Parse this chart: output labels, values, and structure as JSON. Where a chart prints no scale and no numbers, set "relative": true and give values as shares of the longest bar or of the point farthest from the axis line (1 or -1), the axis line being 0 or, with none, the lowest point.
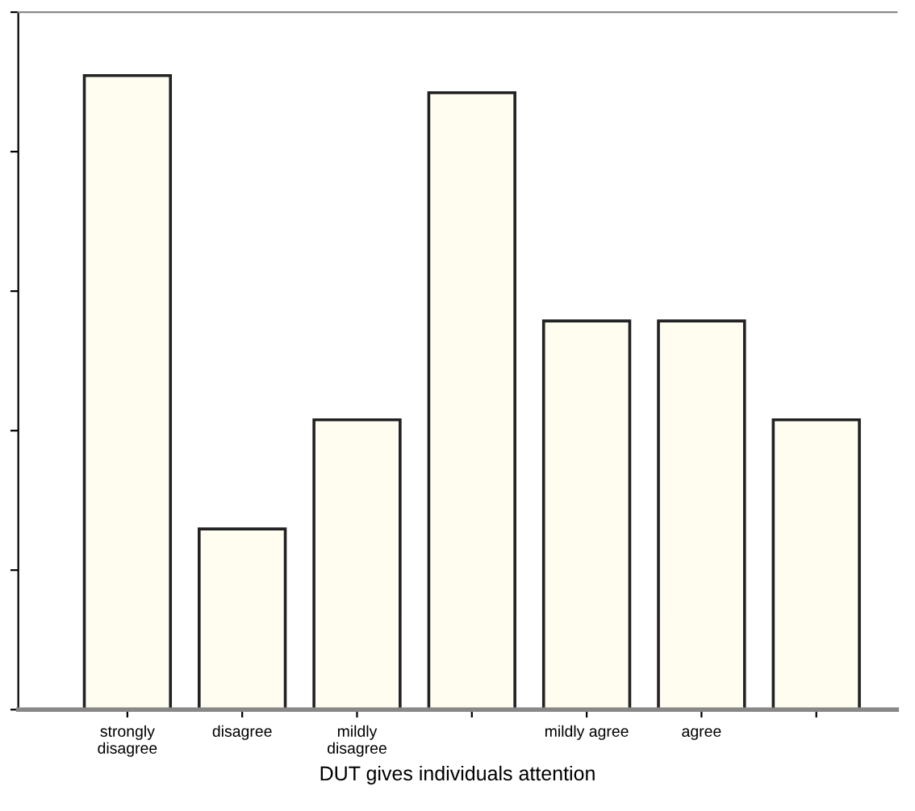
{
  "chart_data": {
    "type": "bar",
    "relative": true,
    "xlabel": "DUT gives individuals attention",
    "categories": [
      "strongly\ndisagree",
      "disagree",
      "mildly\ndisagree",
      null,
      "mildly agree",
      "agree",
      null
    ],
    "values": [
      1,
      0.285,
      0.457,
      0.973,
      0.613,
      0.613,
      0.457
    ],
    "color": "#fffdf0",
    "grid": false
  }
}
